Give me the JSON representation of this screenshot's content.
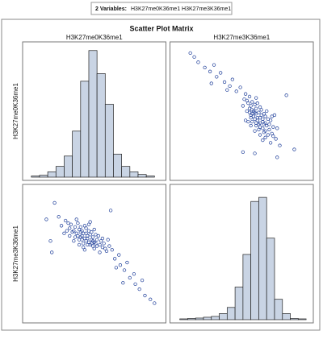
{
  "header": {
    "label": "2 Variables:",
    "value": "H3K27me0K36me1 H3K27me3K36me1"
  },
  "chart_data": {
    "type": "scatter_matrix",
    "title": "Scatter Plot Matrix",
    "marker_color": "#1f3f9a",
    "bar_color": "#c9d4e4",
    "series": [
      {
        "name": "H3K27me0K36me1",
        "xlim": [
          0,
          10
        ],
        "values": [
          4.2,
          4.8,
          3.9,
          5.1,
          4.5,
          3.6,
          4.9,
          5.4,
          4.0,
          4.4,
          3.3,
          4.7,
          5.0,
          4.1,
          5.6,
          3.8,
          4.3,
          4.6,
          5.2,
          3.5,
          4.9,
          4.0,
          4.4,
          5.3,
          3.7,
          4.2,
          5.8,
          3.1,
          4.6,
          4.8,
          3.9,
          5.5,
          4.3,
          3.4,
          5.0,
          4.5,
          2.9,
          5.7,
          4.1,
          4.7,
          3.6,
          5.2,
          4.0,
          4.9,
          3.2,
          5.9,
          4.4,
          3.8,
          5.1,
          4.2,
          2.6,
          6.1,
          3.5,
          4.6,
          5.4,
          3.0,
          4.8,
          4.1,
          5.6,
          3.7,
          2.4,
          6.3,
          4.3,
          3.2,
          5.0,
          4.5,
          2.8,
          6.0,
          3.9,
          4.7,
          6.5,
          6.9,
          7.2,
          7.6,
          8.0,
          8.3,
          8.7,
          7.4,
          6.8,
          7.9,
          8.5,
          9.1,
          9.4,
          6.6,
          7.1,
          1.8,
          1.5,
          2.1,
          1.9,
          6.2
        ],
        "bins": [
          0.4,
          1.0,
          1.6,
          2.2,
          2.8,
          3.4,
          4.0,
          4.6,
          5.2,
          5.8,
          6.4,
          7.0,
          7.6,
          8.2,
          8.8,
          9.4
        ],
        "counts": [
          3,
          5,
          14,
          28,
          55,
          120,
          250,
          330,
          270,
          190,
          60,
          28,
          14,
          7,
          3
        ],
        "ylim": [
          0,
          340
        ]
      },
      {
        "name": "H3K27me3K36me1",
        "xlim": [
          0,
          10.4
        ],
        "values": [
          6.8,
          6.3,
          7.1,
          6.0,
          6.6,
          7.3,
          6.5,
          5.9,
          6.9,
          6.2,
          7.5,
          6.7,
          6.1,
          7.0,
          5.7,
          6.6,
          6.4,
          7.0,
          6.3,
          7.0,
          5.8,
          6.5,
          7.2,
          6.6,
          6.8,
          6.0,
          5.6,
          7.6,
          6.1,
          6.9,
          6.3,
          6.2,
          7.4,
          6.9,
          5.6,
          6.4,
          7.8,
          6.0,
          6.6,
          5.9,
          6.5,
          5.8,
          7.3,
          6.2,
          7.2,
          5.4,
          6.8,
          7.6,
          6.7,
          5.7,
          7.4,
          5.8,
          6.2,
          7.5,
          5.3,
          7.0,
          6.0,
          6.3,
          6.4,
          7.9,
          8.1,
          5.5,
          5.5,
          6.6,
          7.1,
          5.9,
          6.8,
          6.3,
          5.9,
          7.7,
          4.8,
          4.3,
          3.9,
          3.3,
          2.8,
          2.4,
          1.9,
          4.5,
          5.1,
          3.6,
          3.1,
          1.6,
          1.3,
          4.1,
          2.9,
          6.2,
          7.9,
          9.2,
          5.3,
          8.6
        ],
        "bins": [
          0.5,
          1.1,
          1.7,
          2.3,
          2.9,
          3.5,
          4.1,
          4.7,
          5.3,
          5.9,
          6.5,
          7.1,
          7.7,
          8.3,
          8.9,
          9.5,
          10.1
        ],
        "counts": [
          2,
          3,
          4,
          6,
          8,
          15,
          30,
          80,
          160,
          290,
          300,
          200,
          50,
          15,
          3,
          2
        ],
        "ylim": [
          0,
          320
        ]
      }
    ]
  }
}
